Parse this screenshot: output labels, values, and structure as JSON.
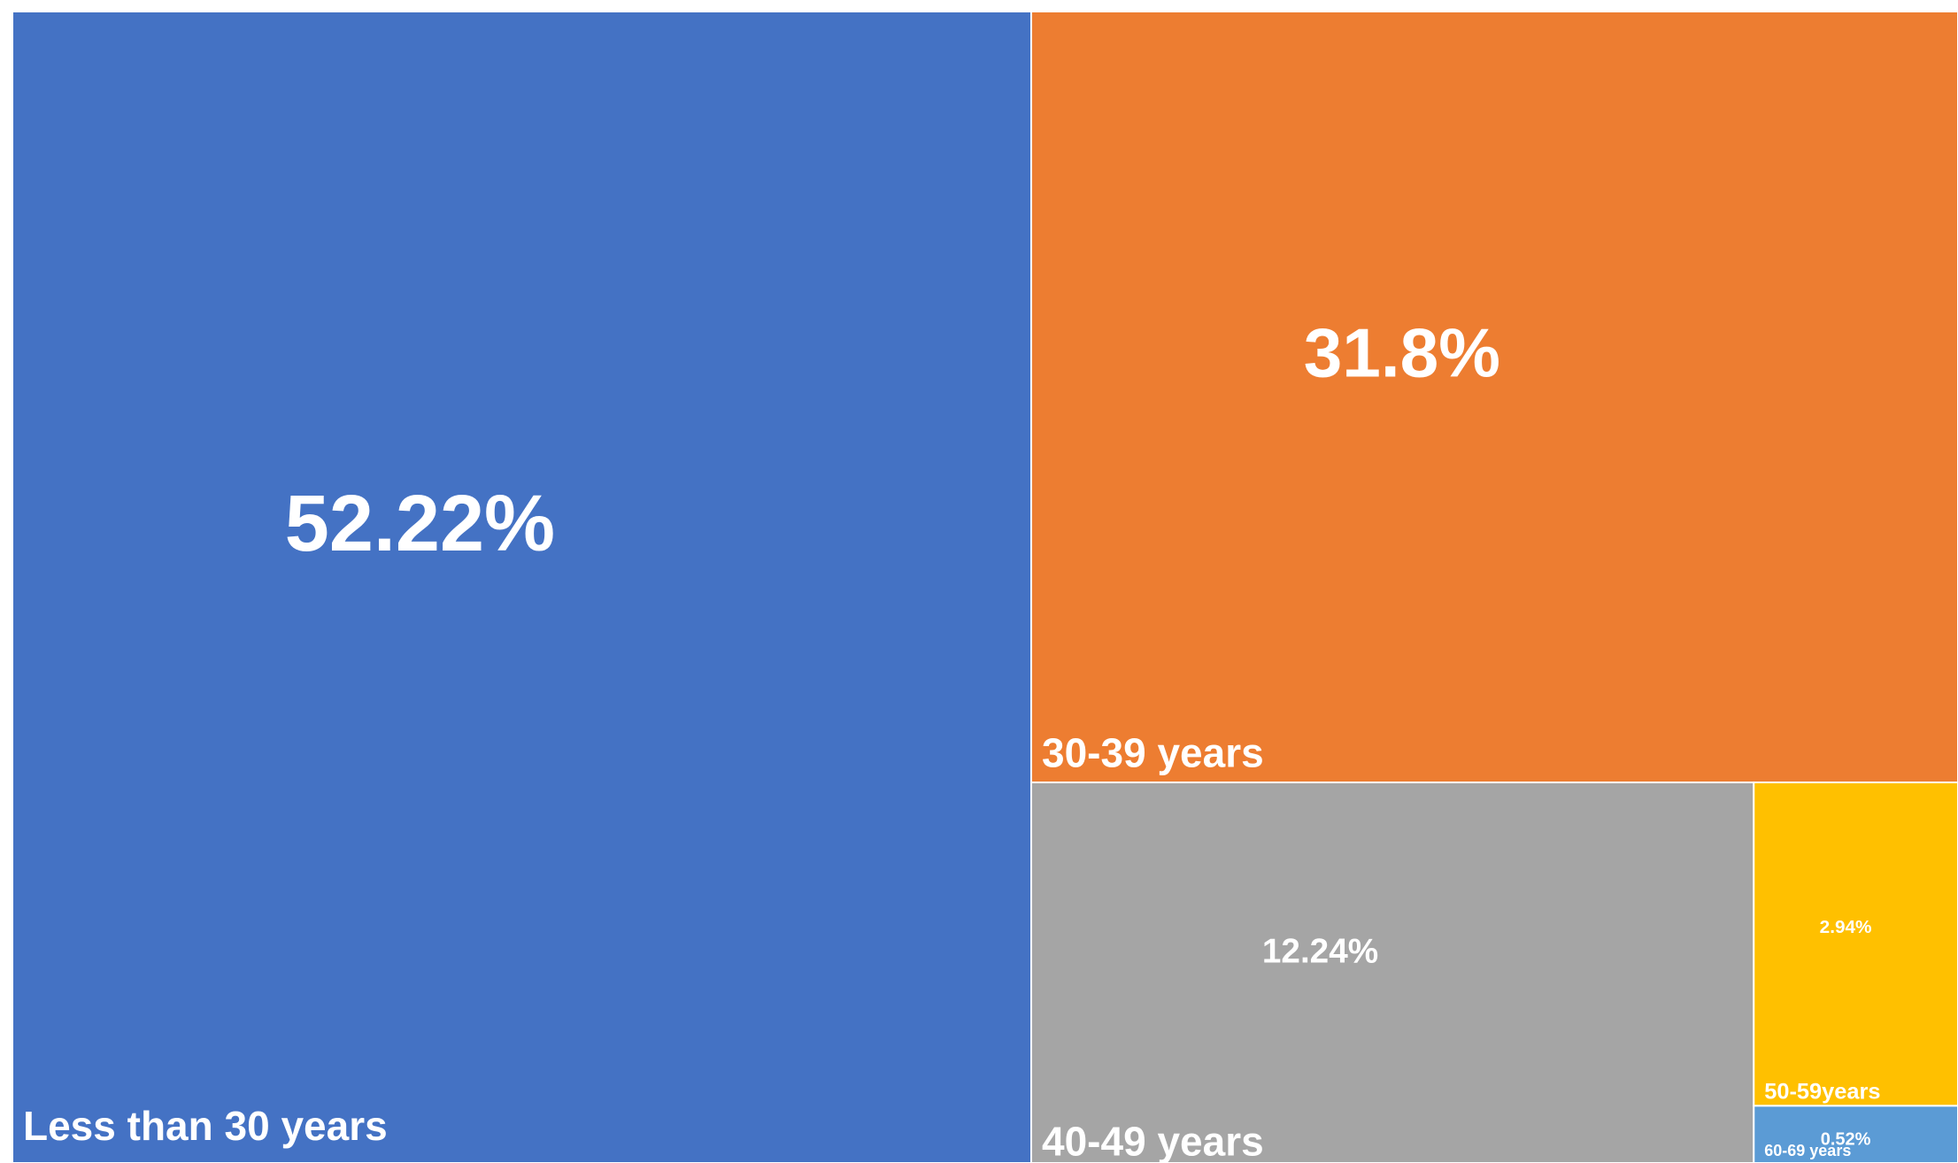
{
  "chart_data": {
    "type": "treemap",
    "categories": [
      "Less than 30 years",
      "30-39 years",
      "40-49 years",
      "50-59years",
      "60-69 years"
    ],
    "values": [
      52.22,
      31.8,
      12.24,
      2.94,
      0.52
    ],
    "value_labels": [
      "52.22%",
      "31.8%",
      "12.24%",
      "2.94%",
      "0.52%"
    ],
    "colors": [
      "#4472c4",
      "#ed7d31",
      "#a5a5a5",
      "#ffc000",
      "#5b9bd5"
    ]
  }
}
